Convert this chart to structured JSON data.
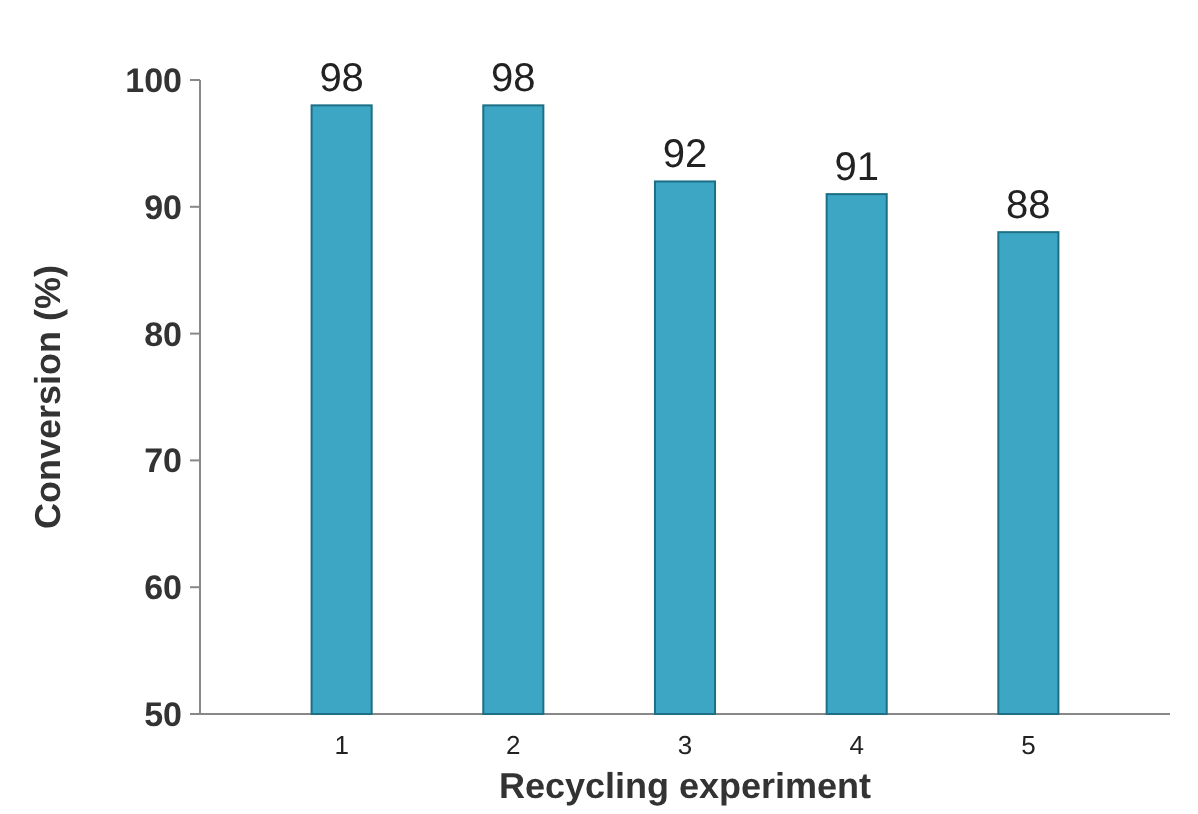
{
  "chart_data": {
    "type": "bar",
    "xlabel": "Recycling experiment",
    "ylabel": "Conversion (%)",
    "categories": [
      "1",
      "2",
      "3",
      "4",
      "5"
    ],
    "values": [
      98,
      98,
      92,
      91,
      88
    ],
    "color": "#3ca6c4",
    "ylim": [
      50,
      100
    ],
    "yticks": [
      50,
      60,
      70,
      80,
      90,
      100
    ],
    "data_labels": true,
    "grid": false
  }
}
